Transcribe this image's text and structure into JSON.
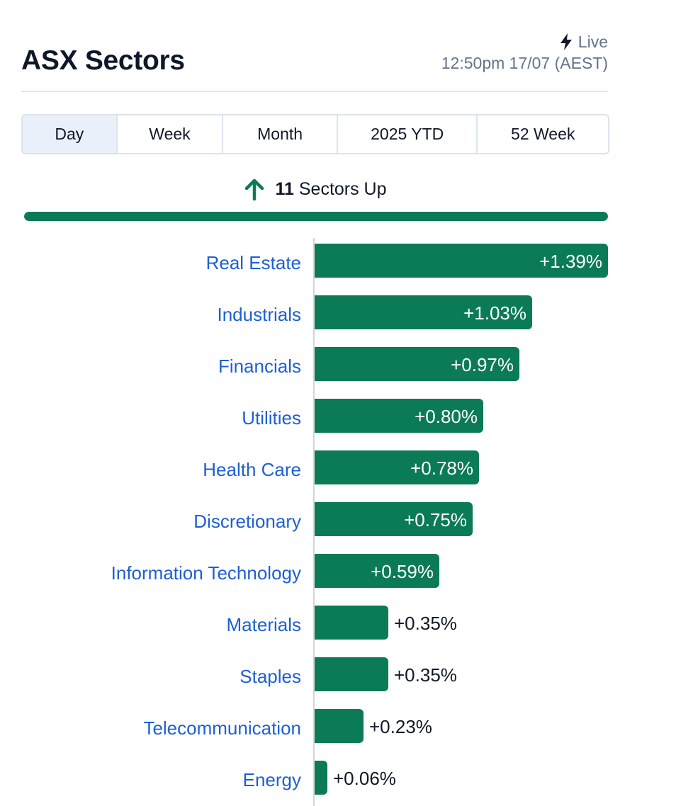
{
  "header": {
    "title": "ASX Sectors",
    "live_label": "Live",
    "timestamp": "12:50pm 17/07 (AEST)"
  },
  "tabs": [
    {
      "label": "Day",
      "active": true
    },
    {
      "label": "Week",
      "active": false
    },
    {
      "label": "Month",
      "active": false
    },
    {
      "label": "2025 YTD",
      "active": false
    },
    {
      "label": "52 Week",
      "active": false
    }
  ],
  "summary": {
    "count": "11",
    "text": "Sectors Up",
    "up_fraction": 1.0
  },
  "colors": {
    "positive": "#0b7a57",
    "link": "#1d5fd6",
    "muted": "#64748b"
  },
  "icons": {
    "live": "bolt-icon",
    "summary": "up-arrow-icon"
  },
  "chart_data": {
    "type": "bar",
    "orientation": "horizontal",
    "categories": [
      "Real Estate",
      "Industrials",
      "Financials",
      "Utilities",
      "Health Care",
      "Discretionary",
      "Information Technology",
      "Materials",
      "Staples",
      "Telecommunication",
      "Energy"
    ],
    "values": [
      1.39,
      1.03,
      0.97,
      0.8,
      0.78,
      0.75,
      0.59,
      0.35,
      0.35,
      0.23,
      0.06
    ],
    "value_labels": [
      "+1.39%",
      "+1.03%",
      "+0.97%",
      "+0.80%",
      "+0.78%",
      "+0.75%",
      "+0.59%",
      "+0.35%",
      "+0.35%",
      "+0.23%",
      "+0.06%"
    ],
    "title": "",
    "xlabel": "",
    "ylabel": "",
    "xlim": [
      0,
      1.39
    ],
    "grid": false,
    "legend": "none"
  }
}
